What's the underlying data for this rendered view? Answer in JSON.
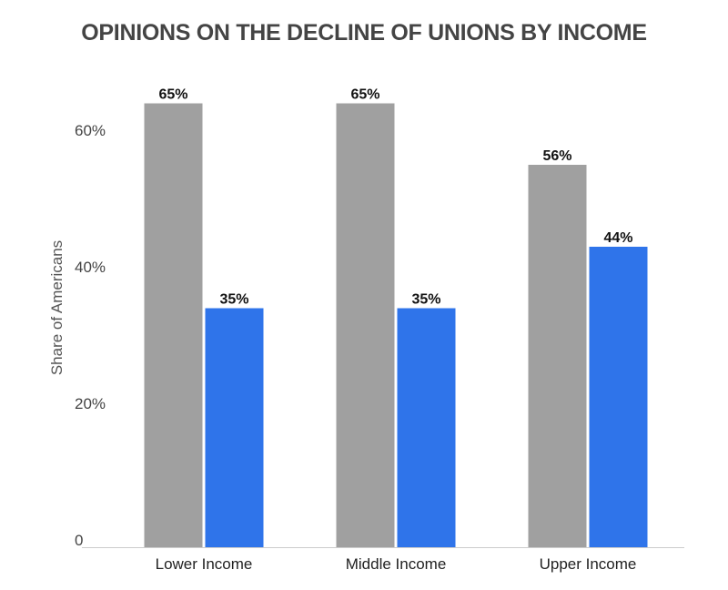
{
  "chart_data": {
    "type": "bar",
    "title": "OPINIONS ON THE DECLINE OF UNIONS BY INCOME",
    "ylabel": "Share of Americans",
    "xlabel": "",
    "categories": [
      "Lower Income",
      "Middle Income",
      "Upper Income"
    ],
    "series": [
      {
        "color": "#a0a0a0",
        "values": [
          65,
          65,
          56
        ],
        "labels": [
          "65%",
          "65%",
          "56%"
        ]
      },
      {
        "color": "#2f74ea",
        "values": [
          35,
          35,
          44
        ],
        "labels": [
          "35%",
          "35%",
          "44%"
        ]
      }
    ],
    "ylim": [
      0,
      80
    ],
    "yticks": [
      {
        "value": 0,
        "label": "0"
      },
      {
        "value": 20,
        "label": "20%"
      },
      {
        "value": 40,
        "label": "40%"
      },
      {
        "value": 60,
        "label": "60%"
      }
    ],
    "grid": false,
    "legend": "none",
    "axis_color": "#cccccc"
  }
}
